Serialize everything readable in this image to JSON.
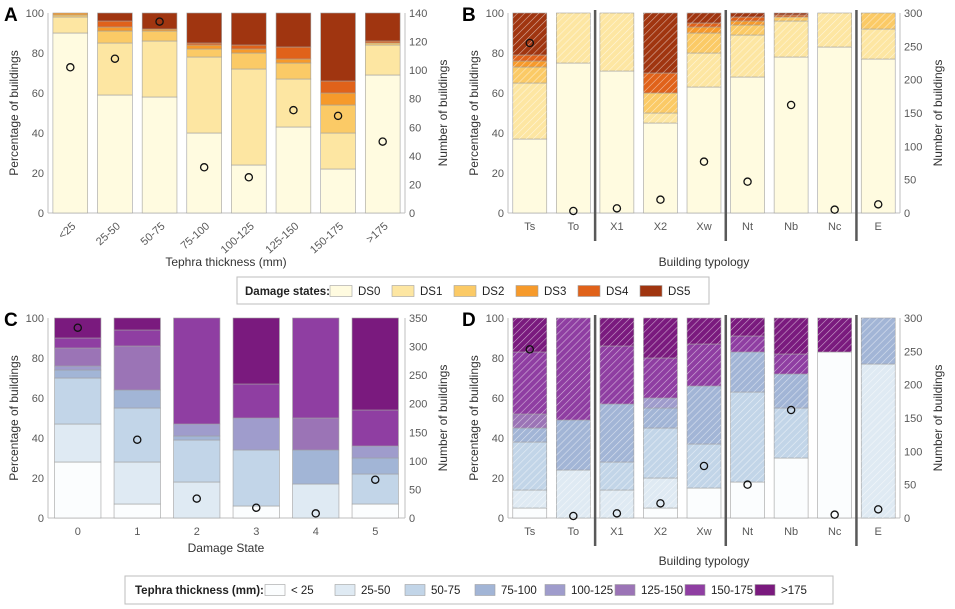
{
  "colors": {
    "ds": [
      "#fffbe0",
      "#fde6a2",
      "#fbca66",
      "#f69a2b",
      "#e0621a",
      "#a03510"
    ],
    "tephra": [
      "#fbfdfe",
      "#dfeaf3",
      "#c2d5e8",
      "#a2b5d6",
      "#9f9ccc",
      "#9b74b6",
      "#8f3ea2",
      "#7a1a7e"
    ]
  },
  "legend_ds": {
    "title": "Damage states:",
    "items": [
      "DS0",
      "DS1",
      "DS2",
      "DS3",
      "DS4",
      "DS5"
    ]
  },
  "legend_tephra": {
    "title": "Tephra thickness (mm):",
    "items": [
      "< 25",
      "25-50",
      "50-75",
      "75-100",
      "100-125",
      "125-150",
      "150-175",
      ">175"
    ]
  },
  "chart_data": [
    {
      "panel": "A",
      "type": "bar",
      "stacked": true,
      "xlabel": "Tephra thickness (mm)",
      "ylabel": "Percentage of buildings",
      "y2label": "Number of buildings",
      "ylim": [
        0,
        100
      ],
      "y2lim": [
        0,
        140
      ],
      "yticks": [
        "0",
        "20",
        "40",
        "60",
        "80",
        "100"
      ],
      "y2ticks": [
        "0",
        "20",
        "40",
        "60",
        "80",
        "100",
        "120",
        "140"
      ],
      "categories": [
        "<25",
        "25-50",
        "50-75",
        "75-100",
        "100-125",
        "125-150",
        "150-175",
        ">175"
      ],
      "series": [
        {
          "name": "DS0",
          "values": [
            90,
            59,
            58,
            40,
            24,
            43,
            22,
            69
          ]
        },
        {
          "name": "DS1",
          "values": [
            8,
            26,
            28,
            38,
            48,
            24,
            18,
            15
          ]
        },
        {
          "name": "DS2",
          "values": [
            1,
            6,
            5,
            4,
            8,
            8,
            14,
            1
          ]
        },
        {
          "name": "DS3",
          "values": [
            1,
            2,
            1,
            2,
            2,
            2,
            6,
            0
          ]
        },
        {
          "name": "DS4",
          "values": [
            0,
            3,
            0,
            1,
            2,
            6,
            6,
            1
          ]
        },
        {
          "name": "DS5",
          "values": [
            0,
            4,
            8,
            15,
            16,
            17,
            34,
            14
          ]
        }
      ],
      "counts": [
        102,
        108,
        134,
        32,
        25,
        72,
        68,
        50
      ]
    },
    {
      "panel": "B",
      "type": "bar",
      "stacked": true,
      "xlabel": "Building typology",
      "ylabel": "Percentage of buildings",
      "y2label": "Number of buildings",
      "ylim": [
        0,
        100
      ],
      "y2lim": [
        0,
        300
      ],
      "yticks": [
        "0",
        "20",
        "40",
        "60",
        "80",
        "100"
      ],
      "y2ticks": [
        "0",
        "50",
        "100",
        "150",
        "200",
        "250",
        "300"
      ],
      "categories": [
        "Ts",
        "To",
        "X1",
        "X2",
        "Xw",
        "Nt",
        "Nb",
        "Nc",
        "E"
      ],
      "separators_after": [
        1,
        4,
        7
      ],
      "series": [
        {
          "name": "DS0",
          "values": [
            37,
            75,
            71,
            45,
            63,
            68,
            78,
            83,
            77
          ]
        },
        {
          "name": "DS1",
          "values": [
            28,
            25,
            29,
            5,
            17,
            21,
            18,
            17,
            15
          ]
        },
        {
          "name": "DS2",
          "values": [
            8,
            0,
            0,
            10,
            10,
            5,
            2,
            0,
            8
          ]
        },
        {
          "name": "DS3",
          "values": [
            3,
            0,
            0,
            0,
            3,
            2,
            0,
            0,
            0
          ]
        },
        {
          "name": "DS4",
          "values": [
            3,
            0,
            0,
            10,
            2,
            2,
            1,
            0,
            0
          ]
        },
        {
          "name": "DS5",
          "values": [
            21,
            0,
            0,
            30,
            5,
            2,
            1,
            0,
            0
          ]
        }
      ],
      "counts": [
        255,
        3,
        7,
        20,
        77,
        47,
        162,
        5,
        13
      ]
    },
    {
      "panel": "C",
      "type": "bar",
      "stacked": true,
      "xlabel": "Damage State",
      "ylabel": "Percentage of buildings",
      "y2label": "Number of buildings",
      "ylim": [
        0,
        100
      ],
      "y2lim": [
        0,
        350
      ],
      "yticks": [
        "0",
        "20",
        "40",
        "60",
        "80",
        "100"
      ],
      "y2ticks": [
        "0",
        "50",
        "100",
        "150",
        "200",
        "250",
        "300",
        "350"
      ],
      "categories": [
        "0",
        "1",
        "2",
        "3",
        "4",
        "5"
      ],
      "series": [
        {
          "name": "< 25",
          "values": [
            28,
            7,
            0,
            6,
            0,
            7
          ]
        },
        {
          "name": "25-50",
          "values": [
            19,
            21,
            18,
            0,
            17,
            0
          ]
        },
        {
          "name": "50-75",
          "values": [
            23,
            27,
            21,
            28,
            0,
            15
          ]
        },
        {
          "name": "75-100",
          "values": [
            4,
            9,
            2,
            0,
            17,
            8
          ]
        },
        {
          "name": "100-125",
          "values": [
            2,
            0,
            6,
            16,
            0,
            6
          ]
        },
        {
          "name": "125-150",
          "values": [
            9,
            22,
            0,
            0,
            16,
            0
          ]
        },
        {
          "name": "150-175",
          "values": [
            5,
            8,
            53,
            17,
            50,
            18
          ]
        },
        {
          "name": ">175",
          "values": [
            10,
            6,
            0,
            33,
            0,
            46
          ]
        }
      ],
      "counts": [
        333,
        137,
        34,
        18,
        8,
        67
      ]
    },
    {
      "panel": "D",
      "type": "bar",
      "stacked": true,
      "xlabel": "Building typology",
      "ylabel": "Percentage of buildings",
      "y2label": "Number of buildings",
      "ylim": [
        0,
        100
      ],
      "y2lim": [
        0,
        300
      ],
      "yticks": [
        "0",
        "20",
        "40",
        "60",
        "80",
        "100"
      ],
      "y2ticks": [
        "0",
        "50",
        "100",
        "150",
        "200",
        "250",
        "300"
      ],
      "categories": [
        "Ts",
        "To",
        "X1",
        "X2",
        "Xw",
        "Nt",
        "Nb",
        "Nc",
        "E"
      ],
      "separators_after": [
        1,
        4,
        7
      ],
      "series": [
        {
          "name": "< 25",
          "values": [
            5,
            0,
            0,
            5,
            15,
            18,
            30,
            83,
            0
          ]
        },
        {
          "name": "25-50",
          "values": [
            9,
            24,
            14,
            15,
            0,
            0,
            0,
            0,
            77
          ]
        },
        {
          "name": "50-75",
          "values": [
            24,
            0,
            14,
            25,
            22,
            45,
            25,
            0,
            0
          ]
        },
        {
          "name": "75-100",
          "values": [
            7,
            25,
            29,
            10,
            29,
            20,
            17,
            0,
            23
          ]
        },
        {
          "name": "100-125",
          "values": [
            0,
            0,
            0,
            5,
            0,
            0,
            0,
            0,
            0
          ]
        },
        {
          "name": "125-150",
          "values": [
            7,
            0,
            0,
            0,
            0,
            0,
            0,
            0,
            0
          ]
        },
        {
          "name": "150-175",
          "values": [
            31,
            51,
            29,
            20,
            21,
            8,
            10,
            0,
            0
          ]
        },
        {
          "name": ">175",
          "values": [
            17,
            0,
            14,
            20,
            13,
            9,
            18,
            17,
            0
          ]
        }
      ],
      "counts": [
        253,
        3,
        7,
        22,
        78,
        50,
        162,
        5,
        13
      ]
    }
  ]
}
